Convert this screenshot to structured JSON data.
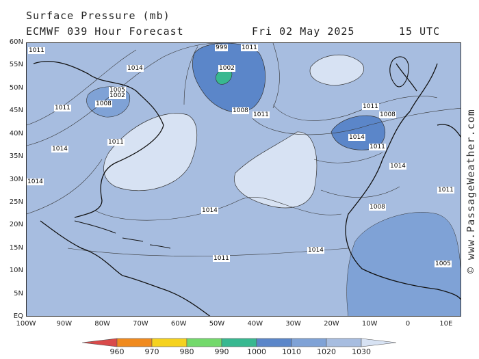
{
  "header": {
    "title": "Surface Pressure (mb)",
    "model_line": "ECMWF 039 Hour Forecast",
    "date": "Fri 02 May 2025",
    "time": "15 UTC"
  },
  "axes": {
    "lat_labels": [
      "60N",
      "55N",
      "50N",
      "45N",
      "40N",
      "35N",
      "30N",
      "25N",
      "20N",
      "15N",
      "10N",
      "5N",
      "EQ"
    ],
    "lon_labels": [
      "100W",
      "90W",
      "80W",
      "70W",
      "60W",
      "50W",
      "40W",
      "30W",
      "20W",
      "10W",
      "0",
      "10E"
    ]
  },
  "watermark": "© www.PassageWeather.com",
  "legend": {
    "colors": [
      "#d94a4a",
      "#f08a1e",
      "#f5d21e",
      "#73d96b",
      "#38b890",
      "#5b86c9",
      "#7fa2d6",
      "#a7bde0",
      "#d7e2f3"
    ],
    "labels": [
      "960",
      "970",
      "980",
      "990",
      "1000",
      "1010",
      "1020",
      "1030"
    ]
  },
  "map_features": {
    "isobar_labels": [
      "1011",
      "1014",
      "1005",
      "1002",
      "1008",
      "999",
      "1002",
      "1011",
      "1008",
      "1011",
      "1011",
      "1008",
      "1014",
      "1011",
      "1014",
      "1014",
      "1011",
      "1014",
      "1008",
      "1011",
      "1011",
      "1014",
      "1011",
      "1014",
      "1005"
    ],
    "background_color": "#a7bde0",
    "high_color": "#d7e2f3",
    "low_color": "#5b86c9",
    "deep_low_color": "#38b890"
  }
}
